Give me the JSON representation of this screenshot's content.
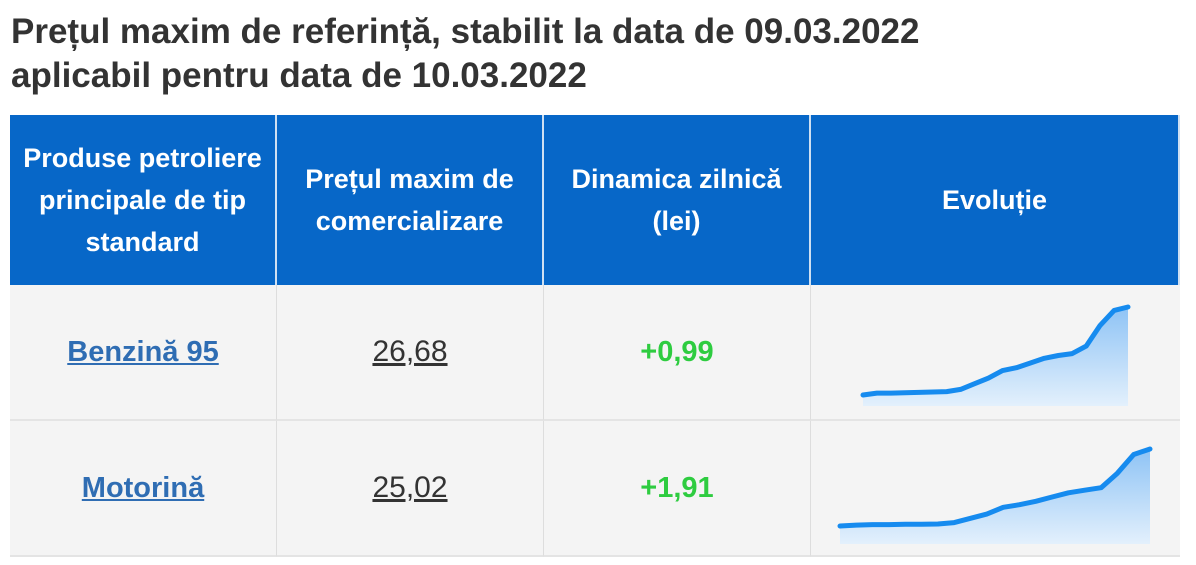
{
  "title": [
    "Prețul maxim de referință, stabilit la data de 09.03.2022",
    "aplicabil pentru data de 10.03.2022"
  ],
  "table": {
    "headers": [
      "Produse petroliere principale de tip standard",
      "Prețul maxim de comercializare",
      "Dinamica zilnică (lei)",
      "Evoluție"
    ],
    "rows": [
      {
        "product": "Benzină 95",
        "price": "26,68",
        "change": "+0,99",
        "evolution": [
          22.0,
          22.1,
          22.1,
          22.12,
          22.14,
          22.16,
          22.18,
          22.3,
          22.6,
          22.9,
          23.3,
          23.45,
          23.7,
          23.95,
          24.1,
          24.2,
          24.6,
          25.7,
          26.5,
          26.68
        ]
      },
      {
        "product": "Motorină",
        "price": "25,02",
        "change": "+1,91",
        "evolution": [
          20.5,
          20.55,
          20.58,
          20.58,
          20.6,
          20.6,
          20.62,
          20.7,
          20.95,
          21.2,
          21.6,
          21.75,
          21.95,
          22.2,
          22.45,
          22.6,
          22.75,
          23.6,
          24.7,
          25.02
        ]
      }
    ]
  }
}
